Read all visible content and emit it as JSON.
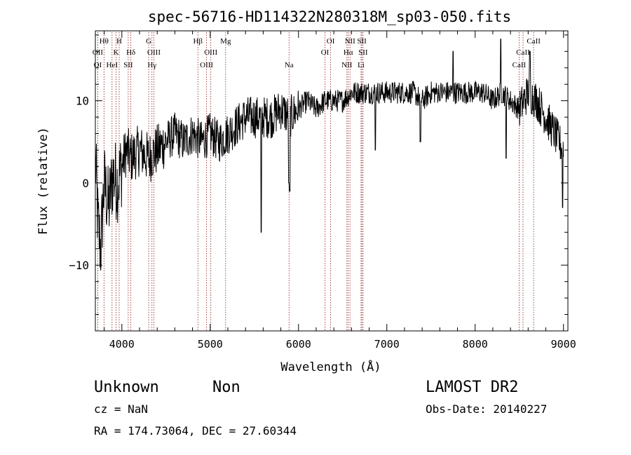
{
  "chart_data": {
    "type": "line",
    "title": "spec-56716-HD114322N280318M_sp03-050.fits",
    "xlabel": "Wavelength (Å)",
    "ylabel": "Flux (relative)",
    "xlim": [
      3700,
      9050
    ],
    "ylim": [
      -18,
      18.5
    ],
    "x_ticks": [
      4000,
      5000,
      6000,
      7000,
      8000,
      9000
    ],
    "x_tick_labels": [
      "4000",
      "5000",
      "6000",
      "7000",
      "8000",
      "9000"
    ],
    "y_ticks": [
      -10,
      0,
      10
    ],
    "y_tick_labels": [
      "−10",
      "0",
      "10"
    ],
    "grid": false,
    "line_color": "#000000",
    "marker_color": "#8b1a1a",
    "spectrum_anchors": [
      [
        3700,
        3
      ],
      [
        3730,
        -5
      ],
      [
        3760,
        -8
      ],
      [
        3800,
        0
      ],
      [
        3850,
        -3
      ],
      [
        3900,
        1
      ],
      [
        3950,
        0
      ],
      [
        4000,
        2
      ],
      [
        4050,
        4
      ],
      [
        4100,
        3
      ],
      [
        4200,
        4
      ],
      [
        4300,
        3
      ],
      [
        4400,
        4
      ],
      [
        4500,
        5
      ],
      [
        4600,
        6
      ],
      [
        4700,
        5
      ],
      [
        4800,
        6
      ],
      [
        4900,
        5
      ],
      [
        5000,
        6
      ],
      [
        5100,
        5
      ],
      [
        5200,
        6
      ],
      [
        5300,
        7
      ],
      [
        5400,
        8
      ],
      [
        5500,
        8
      ],
      [
        5600,
        8
      ],
      [
        5700,
        8
      ],
      [
        5800,
        9
      ],
      [
        5900,
        8
      ],
      [
        6000,
        9
      ],
      [
        6100,
        10
      ],
      [
        6200,
        9
      ],
      [
        6300,
        10
      ],
      [
        6400,
        10
      ],
      [
        6500,
        10
      ],
      [
        6600,
        11
      ],
      [
        6700,
        11
      ],
      [
        6800,
        11
      ],
      [
        6900,
        11
      ],
      [
        7000,
        11
      ],
      [
        7100,
        11
      ],
      [
        7200,
        11
      ],
      [
        7300,
        11
      ],
      [
        7400,
        10
      ],
      [
        7500,
        11
      ],
      [
        7600,
        11
      ],
      [
        7700,
        11
      ],
      [
        7800,
        11
      ],
      [
        7900,
        11
      ],
      [
        8000,
        11
      ],
      [
        8100,
        11
      ],
      [
        8200,
        10
      ],
      [
        8300,
        11
      ],
      [
        8400,
        10
      ],
      [
        8500,
        9
      ],
      [
        8600,
        11
      ],
      [
        8700,
        10
      ],
      [
        8800,
        8
      ],
      [
        8900,
        6
      ],
      [
        9000,
        4
      ]
    ],
    "spectrum_features": [
      [
        5578,
        -6
      ],
      [
        5890,
        0
      ],
      [
        5900,
        -1
      ],
      [
        6870,
        4
      ],
      [
        7380,
        5
      ],
      [
        7600,
        10
      ],
      [
        7750,
        16
      ],
      [
        8290,
        17.5
      ],
      [
        8350,
        3
      ],
      [
        8620,
        16
      ],
      [
        8990,
        -3
      ]
    ],
    "lines": [
      {
        "label": "Hθ",
        "x": 3798,
        "row": 1
      },
      {
        "label": "OII",
        "x": 3727,
        "row": 2
      },
      {
        "label": "OI",
        "x": 3727,
        "row": 3
      },
      {
        "label": "H",
        "x": 3970,
        "row": 1
      },
      {
        "label": "K",
        "x": 3934,
        "row": 2
      },
      {
        "label": "HeI",
        "x": 3889,
        "row": 3
      },
      {
        "label": "Hδ",
        "x": 4102,
        "row": 2
      },
      {
        "label": "SII",
        "x": 4072,
        "row": 3
      },
      {
        "label": "G",
        "x": 4304,
        "row": 1
      },
      {
        "label": "OIII",
        "x": 4363,
        "row": 2
      },
      {
        "label": "Hγ",
        "x": 4341,
        "row": 3
      },
      {
        "label": "Hβ",
        "x": 4861,
        "row": 1
      },
      {
        "label": "OIII",
        "x": 4959,
        "row": 3
      },
      {
        "label": "OIII",
        "x": 5007,
        "row": 2
      },
      {
        "label": "Mg",
        "x": 5175,
        "row": 1
      },
      {
        "label": "Na",
        "x": 5893,
        "row": 3
      },
      {
        "label": "OI",
        "x": 6300,
        "row": 2
      },
      {
        "label": "OI",
        "x": 6364,
        "row": 1
      },
      {
        "label": "NII",
        "x": 6548,
        "row": 3
      },
      {
        "label": "NII",
        "x": 6583,
        "row": 1
      },
      {
        "label": "Hα",
        "x": 6563,
        "row": 2
      },
      {
        "label": "SII",
        "x": 6717,
        "row": 1
      },
      {
        "label": "SII",
        "x": 6731,
        "row": 2
      },
      {
        "label": "Li",
        "x": 6708,
        "row": 3
      },
      {
        "label": "CaII",
        "x": 8498,
        "row": 3
      },
      {
        "label": "CaII",
        "x": 8542,
        "row": 2
      },
      {
        "label": "CaII",
        "x": 8662,
        "row": 1
      }
    ]
  },
  "info": {
    "class": "Unknown",
    "subclass": "Non",
    "survey": "LAMOST DR2",
    "cz": "cz = NaN",
    "obs_date": "Obs-Date: 20140227",
    "coords": "RA = 174.73064, DEC =  27.60344"
  }
}
